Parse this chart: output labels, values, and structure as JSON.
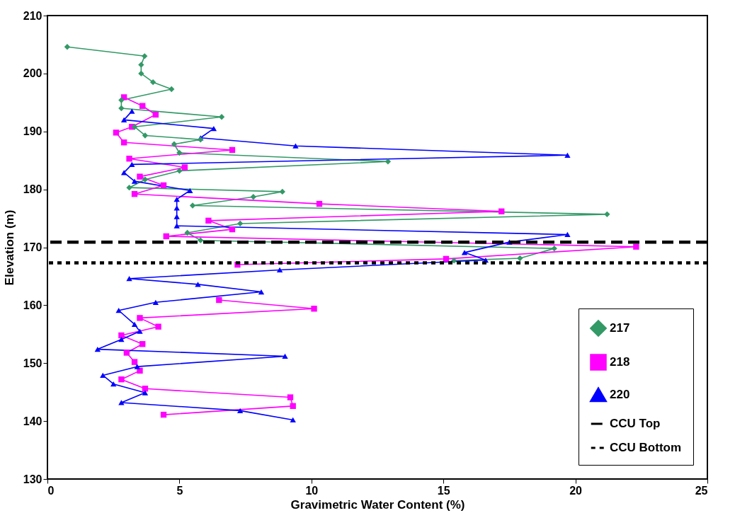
{
  "chart_data": {
    "type": "line",
    "xlabel": "Gravimetric Water Content (%)",
    "ylabel": "Elevation (m)",
    "xlim": [
      0,
      25
    ],
    "xticks": [
      0,
      5,
      10,
      15,
      20,
      25
    ],
    "ylim": [
      130,
      210
    ],
    "yticks": [
      130,
      140,
      150,
      160,
      170,
      180,
      190,
      200,
      210
    ],
    "grid": false,
    "legend": "bottom right",
    "series": [
      {
        "name": "217",
        "color": "#339966",
        "marker": "diamond",
        "x": [
          0.75,
          3.68,
          3.55,
          3.55,
          4.0,
          4.7,
          2.8,
          2.8,
          6.6,
          3.3,
          3.7,
          5.8,
          4.8,
          5.0,
          12.9,
          5.0,
          3.7,
          3.1,
          8.9,
          7.8,
          5.5,
          21.2,
          7.3,
          5.3,
          5.8,
          19.2,
          17.9,
          15.4
        ],
        "values": [
          204.6,
          203.0,
          201.5,
          200.0,
          198.5,
          197.3,
          195.4,
          194.0,
          192.5,
          190.8,
          189.3,
          188.6,
          187.8,
          186.3,
          184.8,
          183.2,
          181.7,
          180.3,
          179.6,
          178.7,
          177.2,
          175.7,
          174.1,
          172.5,
          171.2,
          169.8,
          168.1,
          167.7
        ]
      },
      {
        "name": "218",
        "color": "#ff00ff",
        "marker": "square",
        "x": [
          2.9,
          3.6,
          4.1,
          3.2,
          2.6,
          2.9,
          7.0,
          3.1,
          5.2,
          3.5,
          4.4,
          3.3,
          10.3,
          17.2,
          6.1,
          7.0,
          4.5,
          22.3,
          15.1,
          7.2,
          null,
          6.5,
          10.1,
          3.5,
          4.2,
          2.8,
          3.6,
          3.0,
          3.3,
          3.5,
          2.8,
          3.7,
          9.2,
          9.3,
          4.4
        ],
        "values": [
          195.9,
          194.4,
          192.9,
          190.8,
          189.8,
          188.1,
          186.8,
          185.3,
          183.8,
          182.2,
          180.7,
          179.2,
          177.5,
          176.2,
          174.6,
          173.1,
          171.9,
          170.1,
          168.0,
          167.0,
          null,
          160.9,
          159.4,
          157.8,
          156.3,
          154.8,
          153.3,
          151.8,
          150.2,
          148.7,
          147.2,
          145.6,
          144.1,
          142.6,
          141.1
        ]
      },
      {
        "name": "220",
        "color": "#0000ff",
        "marker": "triangle",
        "x": [
          3.2,
          2.9,
          6.3,
          5.8,
          9.4,
          19.7,
          3.2,
          2.9,
          3.3,
          5.4,
          4.9,
          4.9,
          4.9,
          4.9,
          19.7,
          17.5,
          15.8,
          16.6,
          8.8,
          3.1,
          5.7,
          8.1,
          4.1,
          2.7,
          3.3,
          3.5,
          2.8,
          1.9,
          9.0,
          3.4,
          2.1,
          2.5,
          3.7,
          2.8,
          7.3,
          9.3
        ],
        "values": [
          193.5,
          192.0,
          190.5,
          188.9,
          187.5,
          185.9,
          184.3,
          182.9,
          181.4,
          179.8,
          178.3,
          176.8,
          175.3,
          173.7,
          172.2,
          170.9,
          169.1,
          167.8,
          166.1,
          164.6,
          163.6,
          162.3,
          160.5,
          159.1,
          156.7,
          155.5,
          154.1,
          152.4,
          151.2,
          149.4,
          147.9,
          146.4,
          144.9,
          143.2,
          141.8,
          140.2
        ]
      }
    ],
    "ref_lines": [
      {
        "axis": "y",
        "value": 170.9,
        "label": "CCU Top",
        "color": "#000000",
        "line_style": "dashed"
      },
      {
        "axis": "y",
        "value": 167.3,
        "label": "CCU Bottom",
        "color": "#000000",
        "line_style": "dotted"
      }
    ]
  }
}
